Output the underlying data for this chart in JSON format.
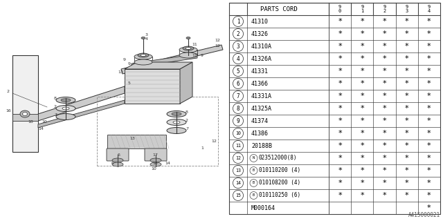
{
  "bg_color": "#ffffff",
  "diagram_code": "A415000021",
  "table_header": "PARTS CORD",
  "year_cols": [
    "9\n0",
    "9\n1",
    "9\n2",
    "9\n3",
    "9\n4"
  ],
  "parts": [
    {
      "num": "1",
      "prefix": "",
      "code": "41310",
      "stars": [
        true,
        true,
        true,
        true,
        true
      ]
    },
    {
      "num": "2",
      "prefix": "",
      "code": "41326",
      "stars": [
        true,
        true,
        true,
        true,
        true
      ]
    },
    {
      "num": "3",
      "prefix": "",
      "code": "41310A",
      "stars": [
        true,
        true,
        true,
        true,
        true
      ]
    },
    {
      "num": "4",
      "prefix": "",
      "code": "41326A",
      "stars": [
        true,
        true,
        true,
        true,
        true
      ]
    },
    {
      "num": "5",
      "prefix": "",
      "code": "41331",
      "stars": [
        true,
        true,
        true,
        true,
        true
      ]
    },
    {
      "num": "6",
      "prefix": "",
      "code": "41366",
      "stars": [
        true,
        true,
        true,
        true,
        true
      ]
    },
    {
      "num": "7",
      "prefix": "",
      "code": "41331A",
      "stars": [
        true,
        true,
        true,
        true,
        true
      ]
    },
    {
      "num": "8",
      "prefix": "",
      "code": "41325A",
      "stars": [
        true,
        true,
        true,
        true,
        true
      ]
    },
    {
      "num": "9",
      "prefix": "",
      "code": "41374",
      "stars": [
        true,
        true,
        true,
        true,
        true
      ]
    },
    {
      "num": "10",
      "prefix": "",
      "code": "41386",
      "stars": [
        true,
        true,
        true,
        true,
        true
      ]
    },
    {
      "num": "11",
      "prefix": "",
      "code": "20188B",
      "stars": [
        true,
        true,
        true,
        true,
        true
      ]
    },
    {
      "num": "12",
      "prefix": "N",
      "code": "023512000(8)",
      "stars": [
        true,
        true,
        true,
        true,
        true
      ]
    },
    {
      "num": "13",
      "prefix": "B",
      "code": "010110200 (4)",
      "stars": [
        true,
        true,
        true,
        true,
        true
      ]
    },
    {
      "num": "14",
      "prefix": "B",
      "code": "010108200 (4)",
      "stars": [
        true,
        true,
        true,
        true,
        true
      ]
    },
    {
      "num": "15",
      "prefix": "B",
      "code": "010110250 (6)",
      "stars": [
        true,
        true,
        true,
        true,
        true
      ]
    },
    {
      "num": "",
      "prefix": "",
      "code": "M000164",
      "stars": [
        false,
        false,
        false,
        false,
        true
      ]
    }
  ],
  "lc": "#444444",
  "tc": "#000000"
}
